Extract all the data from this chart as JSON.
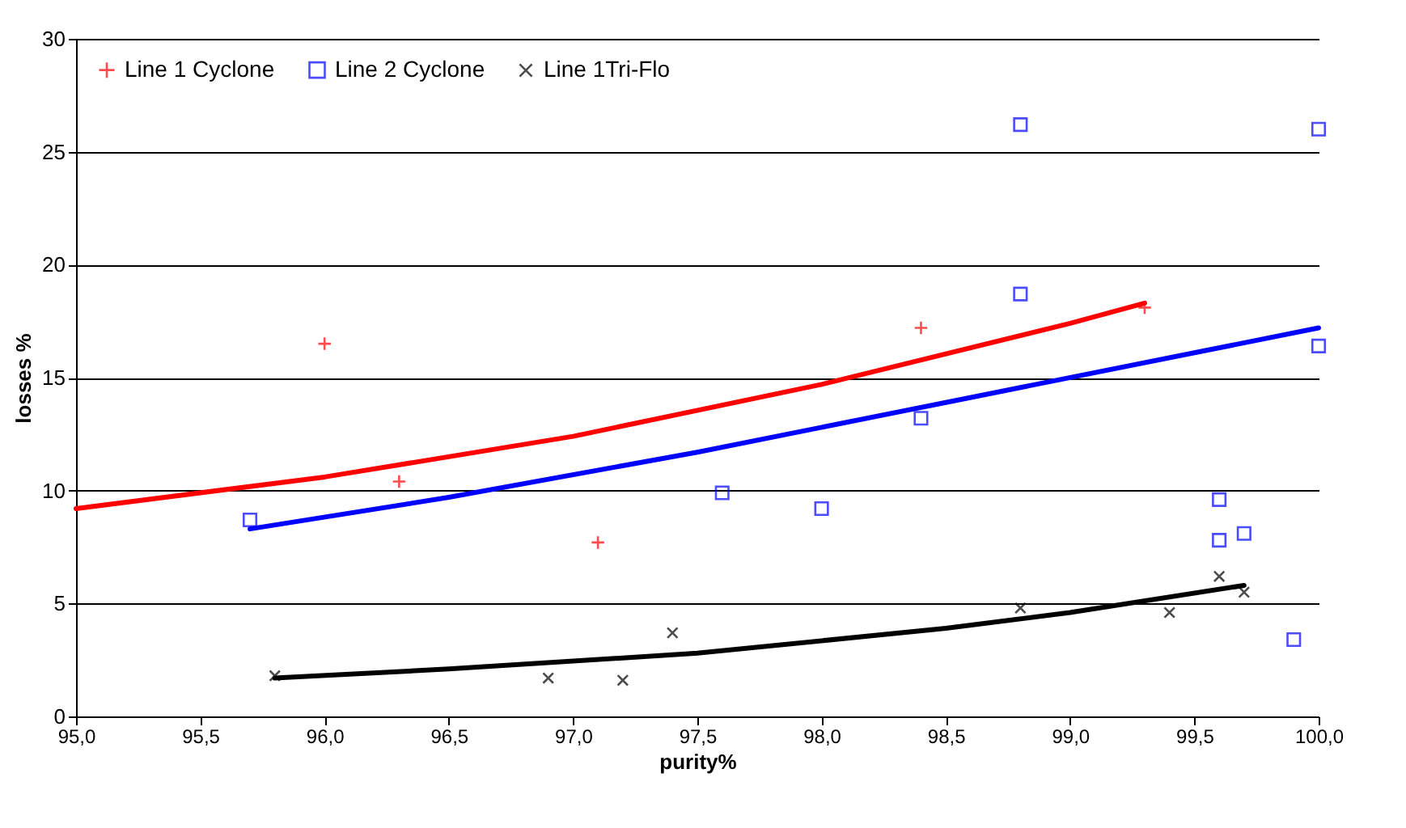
{
  "chart_data": {
    "type": "scatter",
    "xlabel": "purity%",
    "ylabel": "losses %",
    "xlim": [
      95,
      100
    ],
    "xticks": [
      {
        "value": 95,
        "label": "95,0"
      },
      {
        "value": 95.5,
        "label": "95,5"
      },
      {
        "value": 96,
        "label": "96,0"
      },
      {
        "value": 96.5,
        "label": "96,5"
      },
      {
        "value": 97,
        "label": "97,0"
      },
      {
        "value": 97.5,
        "label": "97,5"
      },
      {
        "value": 98,
        "label": "98,0"
      },
      {
        "value": 98.5,
        "label": "98,5"
      },
      {
        "value": 99,
        "label": "99,0"
      },
      {
        "value": 99.5,
        "label": "99,5"
      },
      {
        "value": 100,
        "label": "100,0"
      }
    ],
    "ylim": [
      0,
      30
    ],
    "yticks": [
      0,
      5,
      10,
      15,
      20,
      25,
      30
    ],
    "grid": "y",
    "legend": "top left",
    "series": [
      {
        "name": "Line 1 Cyclone",
        "type": "scatter",
        "marker": "cross",
        "color": "#ff0000",
        "x": [
          96.0,
          96.3,
          97.1,
          98.4,
          99.3
        ],
        "values": [
          16.5,
          10.4,
          7.7,
          17.2,
          18.1
        ]
      },
      {
        "name": "Line 2 Cyclone",
        "type": "scatter",
        "marker": "square",
        "color": "#0000ff",
        "x": [
          95.7,
          97.6,
          98.0,
          98.4,
          98.8,
          98.8,
          99.6,
          99.6,
          99.7,
          99.9,
          100.0,
          100.0
        ],
        "values": [
          8.7,
          9.9,
          9.2,
          13.2,
          26.2,
          18.7,
          9.6,
          7.8,
          8.1,
          3.4,
          26.0,
          16.4
        ]
      },
      {
        "name": "Line 1Tri-Flo",
        "type": "scatter",
        "marker": "x",
        "color": "#000000",
        "x": [
          95.8,
          96.9,
          97.2,
          97.4,
          98.8,
          99.4,
          99.6,
          99.7
        ],
        "values": [
          1.8,
          1.7,
          1.6,
          3.7,
          4.8,
          4.6,
          6.2,
          5.5
        ]
      },
      {
        "type": "line",
        "color": "#ff0000",
        "x": [
          95.0,
          96.0,
          97.0,
          98.0,
          99.0,
          99.3
        ],
        "values": [
          9.2,
          10.6,
          12.4,
          14.7,
          17.4,
          18.3
        ]
      },
      {
        "type": "line",
        "color": "#0000ff",
        "x": [
          95.7,
          96.5,
          97.5,
          98.5,
          99.5,
          100.0
        ],
        "values": [
          8.3,
          9.7,
          11.7,
          13.9,
          16.1,
          17.2
        ]
      },
      {
        "type": "line",
        "color": "#000000",
        "x": [
          95.8,
          96.5,
          97.5,
          98.5,
          99.0,
          99.7
        ],
        "values": [
          1.7,
          2.1,
          2.8,
          3.9,
          4.6,
          5.8
        ]
      }
    ]
  }
}
